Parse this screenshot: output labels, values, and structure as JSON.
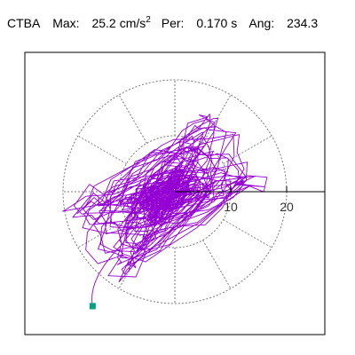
{
  "header": {
    "station": "CTBA",
    "max_label": "Max:",
    "max_value": "25.2",
    "max_unit": "cm/s",
    "max_unit_sup": "2",
    "per_label": "Per:",
    "per_value": "0.170 s",
    "ang_label": "Ang:",
    "ang_value": "234.3"
  },
  "chart_data": {
    "type": "scatter",
    "description_of_axes": "polar particle-motion plot of ground acceleration",
    "radial_ticks": [
      10,
      20
    ],
    "radial_tick_labels": [
      "10",
      "20"
    ],
    "radial_range": [
      0,
      25.2
    ],
    "ring_radii": [
      10,
      20
    ],
    "spoke_angles_deg": [
      0,
      30,
      60,
      90,
      120,
      150,
      180,
      210,
      240,
      270,
      300,
      330
    ],
    "grid": true,
    "peak_point": {
      "angle_deg": 234.3,
      "radius": 25.2
    },
    "trace_color": "#9400d3",
    "marker_color": "#00a080"
  }
}
